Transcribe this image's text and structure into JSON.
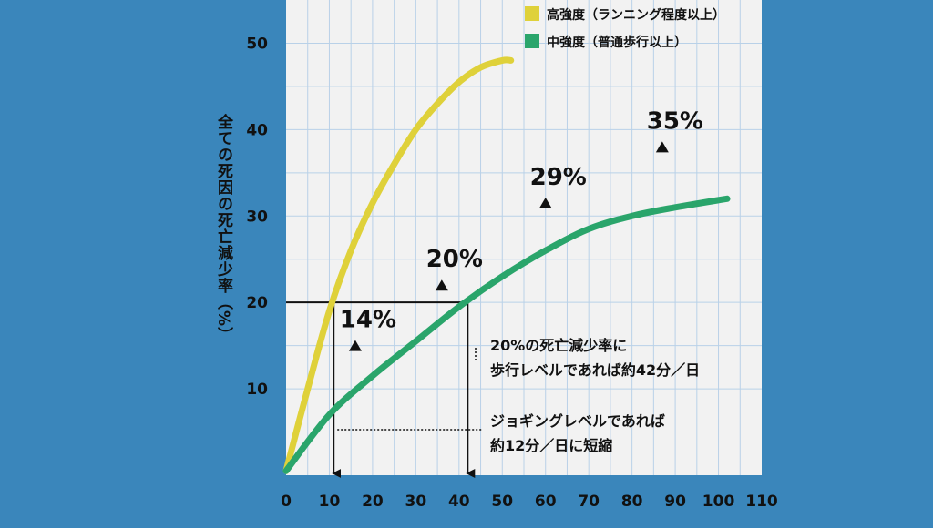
{
  "colors": {
    "background": "#3a86bb",
    "plot_bg": "#f2f2f2",
    "grid": "#b9d1e8",
    "high_intensity": "#dfd13a",
    "moderate_intensity": "#2aa56b",
    "ink": "#111111"
  },
  "chart_data": {
    "type": "line",
    "title": "",
    "xlabel": "",
    "ylabel": "全ての死因の死亡減少率（%）",
    "xlim": [
      0,
      110
    ],
    "ylim": [
      0,
      55
    ],
    "x_ticks": [
      "0",
      "10",
      "20",
      "30",
      "40",
      "50",
      "60",
      "70",
      "80",
      "90",
      "100",
      "110"
    ],
    "y_ticks": [
      "10",
      "20",
      "30",
      "40",
      "50"
    ],
    "grid": true,
    "legend_position": "top-right",
    "series": [
      {
        "name": "高強度（ランニング程度以上）",
        "color": "#dfd13a",
        "x": [
          0,
          5,
          10,
          15,
          20,
          25,
          30,
          35,
          40,
          45,
          50,
          52
        ],
        "y": [
          0.5,
          10,
          19,
          26,
          31.5,
          36,
          40,
          43,
          45.5,
          47.2,
          48,
          48
        ]
      },
      {
        "name": "中強度（普通歩行以上）",
        "color": "#2aa56b",
        "x": [
          0,
          10,
          20,
          30,
          40,
          50,
          60,
          70,
          80,
          90,
          102
        ],
        "y": [
          0.5,
          7,
          11.5,
          15.5,
          19.5,
          23,
          26,
          28.5,
          30,
          31,
          32
        ]
      }
    ],
    "point_labels": [
      {
        "x": 16,
        "y": 15,
        "text": "14%"
      },
      {
        "x": 36,
        "y": 22,
        "text": "20%"
      },
      {
        "x": 60,
        "y": 31.5,
        "text": "29%"
      },
      {
        "x": 87,
        "y": 38,
        "text": "35%"
      }
    ],
    "reference": {
      "y": 20,
      "x_high": 11,
      "x_moderate": 42
    },
    "annotations": [
      {
        "lines": [
          "20%の死亡減少率に",
          "歩行レベルであれば約42分／日"
        ]
      },
      {
        "lines": [
          "ジョギングレベルであれば",
          "約12分／日に短縮"
        ]
      }
    ]
  }
}
